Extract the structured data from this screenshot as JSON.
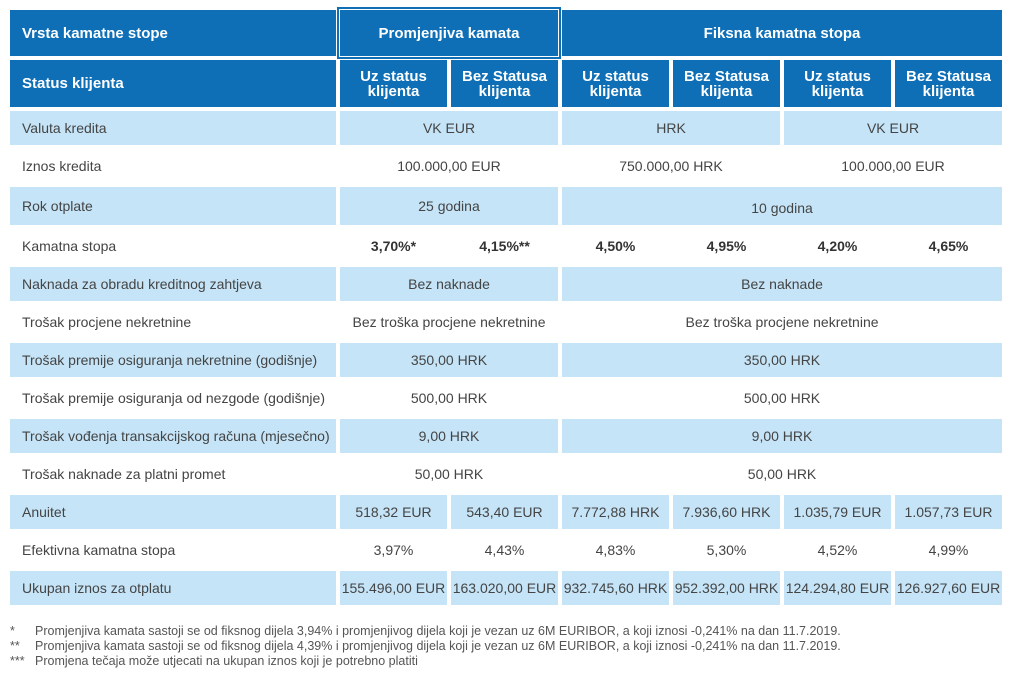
{
  "header": {
    "col_type": "Vrsta kamatne stope",
    "group_variable": "Promjenjiva kamata",
    "group_fixed": "Fiksna kamatna stopa",
    "col_status": "Status klijenta",
    "sub_with": "Uz status\nklijenta",
    "sub_without": "Bez Statusa\nklijenta"
  },
  "rows": {
    "valuta": {
      "label": "Valuta kredita",
      "v1": "VK EUR",
      "v2": "HRK",
      "v3": "VK EUR"
    },
    "iznos": {
      "label": "Iznos kredita",
      "v1": "100.000,00 EUR",
      "v2": "750.000,00 HRK",
      "v3": "100.000,00 EUR"
    },
    "rok": {
      "label": "Rok otplate",
      "v1": "25 godina",
      "v2": "10 godina"
    },
    "kamatna": {
      "label": "Kamatna stopa",
      "c1": "3,70%*",
      "c2": "4,15%**",
      "c3": "4,50%",
      "c4": "4,95%",
      "c5": "4,20%",
      "c6": "4,65%"
    },
    "naknada": {
      "label": "Naknada za obradu kreditnog zahtjeva",
      "v1": "Bez naknade",
      "v2": "Bez naknade"
    },
    "procjena": {
      "label": "Trošak procjene nekretnine",
      "v1": "Bez troška procjene nekretnine",
      "v2": "Bez troška procjene nekretnine"
    },
    "premija_nekr": {
      "label": "Trošak premije osiguranja nekretnine (godišnje)",
      "v1": "350,00 HRK",
      "v2": "350,00 HRK"
    },
    "premija_nezg": {
      "label": "Trošak premije osiguranja od nezgode (godišnje)",
      "v1": "500,00 HRK",
      "v2": "500,00 HRK"
    },
    "vodjenje": {
      "label": "Trošak vođenja transakcijskog računa (mjesečno)",
      "v1": "9,00 HRK",
      "v2": "9,00 HRK"
    },
    "platni": {
      "label": "Trošak naknade za platni promet",
      "v1": "50,00 HRK",
      "v2": "50,00 HRK"
    },
    "anuitet": {
      "label": "Anuitet",
      "c1": "518,32 EUR",
      "c2": "543,40 EUR",
      "c3": "7.772,88 HRK",
      "c4": "7.936,60 HRK",
      "c5": "1.035,79 EUR",
      "c6": "1.057,73 EUR"
    },
    "efektivna": {
      "label": "Efektivna kamatna stopa",
      "c1": "3,97%",
      "c2": "4,43%",
      "c3": "4,83%",
      "c4": "5,30%",
      "c5": "4,52%",
      "c6": "4,99%"
    },
    "ukupno": {
      "label": "Ukupan iznos za otplatu",
      "c1": "155.496,00 EUR",
      "c2": "163.020,00 EUR",
      "c3": "932.745,60 HRK",
      "c4": "952.392,00 HRK",
      "c5": "124.294,80 EUR",
      "c6": "126.927,60 EUR"
    }
  },
  "notes": [
    {
      "mark": "*",
      "text": "Promjenjiva kamata sastoji se od fiksnog dijela 3,94% i promjenjivog dijela koji je vezan uz 6M EURIBOR, a koji iznosi -0,241% na dan 11.7.2019."
    },
    {
      "mark": "**",
      "text": "Promjenjiva kamata sastoji se od fiksnog dijela 4,39% i promjenjivog dijela koji je vezan uz 6M EURIBOR, a koji iznosi -0,241% na dan 11.7.2019."
    },
    {
      "mark": "***",
      "text": "Promjena tečaja može utjecati na ukupan iznos koji je potrebno platiti"
    }
  ]
}
